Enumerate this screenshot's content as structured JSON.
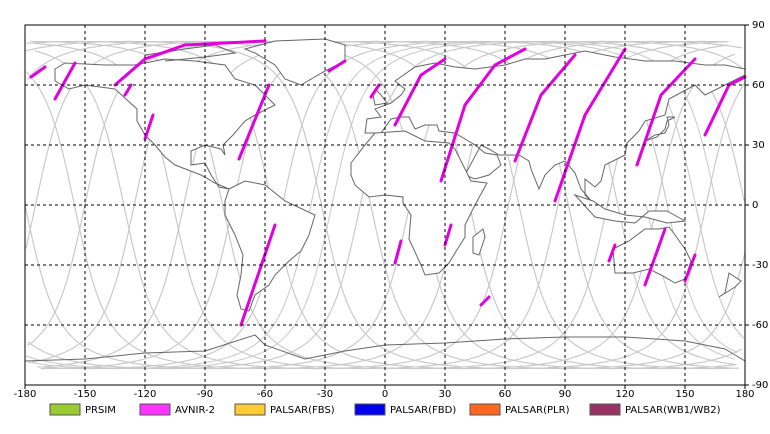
{
  "map": {
    "xticks": [
      -180,
      -150,
      -120,
      -90,
      -60,
      -30,
      0,
      30,
      60,
      90,
      120,
      150,
      180
    ],
    "yticks": [
      90,
      60,
      30,
      0,
      -30,
      -60,
      -90
    ],
    "xlim": [
      -180,
      180
    ],
    "ylim": [
      -90,
      90
    ],
    "grid": true,
    "legend": [
      {
        "name": "PRSIM",
        "color": "#99cc33"
      },
      {
        "name": "AVNIR-2",
        "color": "#ff33ff"
      },
      {
        "name": "PALSAR(FBS)",
        "color": "#ffcc33"
      },
      {
        "name": "PALSAR(FBD)",
        "color": "#0000ee"
      },
      {
        "name": "PALSAR(PLR)",
        "color": "#ff6622"
      },
      {
        "name": "PALSAR(WB1/WB2)",
        "color": "#993366"
      }
    ]
  }
}
